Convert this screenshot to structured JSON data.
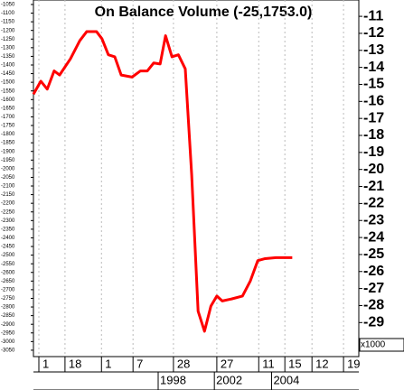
{
  "chart_data": {
    "type": "line",
    "title": "On Balance Volume (-25,1753.0)",
    "y2_unit": "x1000",
    "xlim": [
      0,
      66
    ],
    "xticks": [
      {
        "value": 1.1,
        "label": "1"
      },
      {
        "value": 6.4,
        "label": "18"
      },
      {
        "value": 13.8,
        "label": "1"
      },
      {
        "value": 20.2,
        "label": "7"
      },
      {
        "value": 28.4,
        "label": "28"
      },
      {
        "value": 37.2,
        "label": "27"
      },
      {
        "value": 45.7,
        "label": "11"
      },
      {
        "value": 51.0,
        "label": "15"
      },
      {
        "value": 56.5,
        "label": "12"
      },
      {
        "value": 62.9,
        "label": "19"
      }
    ],
    "year_ticks": [
      {
        "value": 25.3,
        "label": "1998"
      },
      {
        "value": 36.7,
        "label": "2002"
      },
      {
        "value": 48.3,
        "label": "2004"
      }
    ],
    "grid": true,
    "ylim": [
      -1024,
      -3087
    ],
    "yticks": [
      -1050,
      -1100,
      -1150,
      -1200,
      -1250,
      -1300,
      -1350,
      -1400,
      -1450,
      -1500,
      -1550,
      -1600,
      -1650,
      -1700,
      -1750,
      -1800,
      -1850,
      -1900,
      -1950,
      -2000,
      -2050,
      -2100,
      -2150,
      -2200,
      -2250,
      -2300,
      -2350,
      -2400,
      -2450,
      -2500,
      -2550,
      -2600,
      -2650,
      -2700,
      -2750,
      -2800,
      -2850,
      -2900,
      -2950,
      -3000,
      -3050
    ],
    "y2lim": [
      -10.04,
      -31.0
    ],
    "y2ticks": [
      -11,
      -12,
      -13,
      -14,
      -15,
      -16,
      -17,
      -18,
      -19,
      -20,
      -21,
      -22,
      -23,
      -24,
      -25,
      -26,
      -27,
      -28,
      -29
    ],
    "series": [
      {
        "name": "On Balance Volume",
        "color": "#ff0000",
        "axis": "y2",
        "x": [
          0,
          1.5,
          2.8,
          4.2,
          5.3,
          7.5,
          9.4,
          10.8,
          12.8,
          13.9,
          15.2,
          16.5,
          17.8,
          20.0,
          21.7,
          23.1,
          24.4,
          25.7,
          26.8,
          28.1,
          29.4,
          30.8,
          32.1,
          33.4,
          34.7,
          36.0,
          37.2,
          38.3,
          40.2,
          42.4,
          44.0,
          45.5,
          47.0,
          49.2,
          52.5
        ],
        "values": [
          -15.58,
          -14.81,
          -15.28,
          -14.21,
          -14.45,
          -13.5,
          -12.43,
          -11.9,
          -11.9,
          -12.32,
          -13.26,
          -13.38,
          -14.45,
          -14.57,
          -14.21,
          -14.21,
          -13.74,
          -13.8,
          -12.14,
          -13.38,
          -13.26,
          -14.09,
          -20.32,
          -28.33,
          -29.51,
          -28.03,
          -27.44,
          -27.73,
          -27.61,
          -27.44,
          -26.55,
          -25.36,
          -25.24,
          -25.18,
          -25.18
        ]
      }
    ]
  }
}
